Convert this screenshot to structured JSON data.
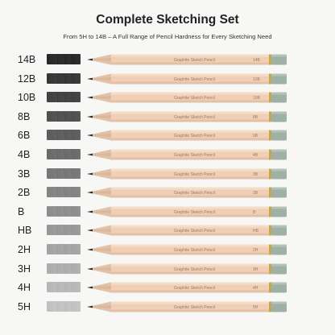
{
  "title": "Complete Sketching Set",
  "subtitle": "From 5H to 14B – A Full Range of Pencil Hardness for Every Sketching Need",
  "pencil_label": "Graphite Sketch Pencil",
  "colors": {
    "background": "#f7f7f6",
    "wood": "#efcfb6",
    "cap": "#9fb1a5",
    "band": "#c9a64e"
  },
  "grades": [
    {
      "grade": "14B",
      "darkness": 0.95
    },
    {
      "grade": "12B",
      "darkness": 0.88
    },
    {
      "grade": "10B",
      "darkness": 0.82
    },
    {
      "grade": "8B",
      "darkness": 0.75
    },
    {
      "grade": "6B",
      "darkness": 0.69
    },
    {
      "grade": "4B",
      "darkness": 0.62
    },
    {
      "grade": "3B",
      "darkness": 0.56
    },
    {
      "grade": "2B",
      "darkness": 0.5
    },
    {
      "grade": "B",
      "darkness": 0.45
    },
    {
      "grade": "HB",
      "darkness": 0.4
    },
    {
      "grade": "2H",
      "darkness": 0.34
    },
    {
      "grade": "3H",
      "darkness": 0.29
    },
    {
      "grade": "4H",
      "darkness": 0.24
    },
    {
      "grade": "5H",
      "darkness": 0.19
    }
  ]
}
